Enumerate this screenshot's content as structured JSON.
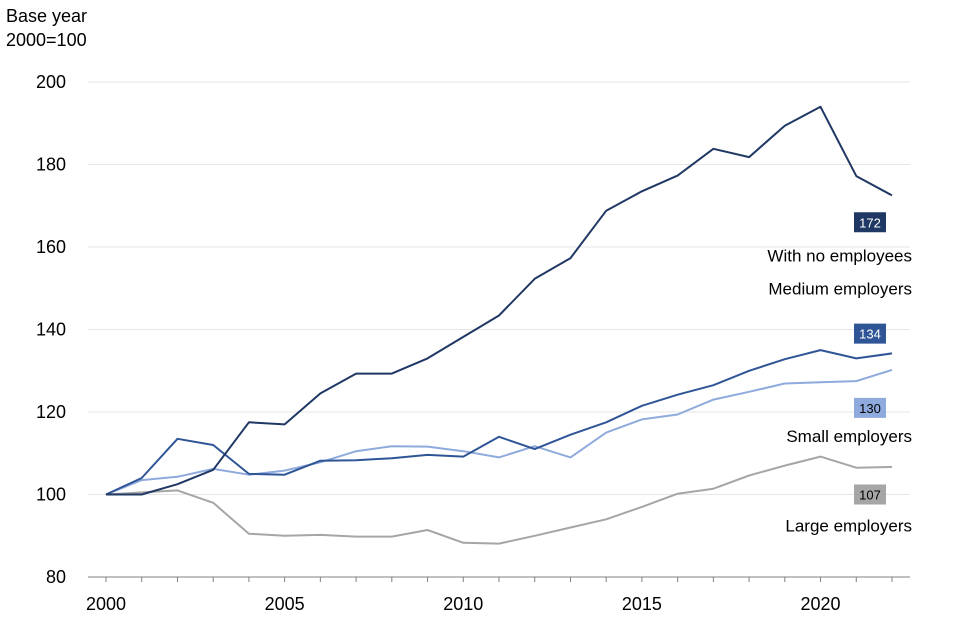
{
  "chart_data": {
    "type": "line",
    "ylabel_line1": "Base year",
    "ylabel_line2": "2000=100",
    "ylim": [
      80,
      200
    ],
    "yticks": [
      80,
      100,
      120,
      140,
      160,
      180,
      200
    ],
    "xlim": [
      2000,
      2022
    ],
    "xticks": [
      2000,
      2005,
      2010,
      2015,
      2020
    ],
    "grid": true,
    "x": [
      2000,
      2001,
      2002,
      2003,
      2004,
      2005,
      2006,
      2007,
      2008,
      2009,
      2010,
      2011,
      2012,
      2013,
      2014,
      2015,
      2016,
      2017,
      2018,
      2019,
      2020,
      2021,
      2022
    ],
    "series": [
      {
        "name": "Large employers",
        "color": "#a6a6a6",
        "end_label": "107",
        "values": [
          100,
          100.5,
          101,
          98,
          90.5,
          90,
          90.2,
          89.8,
          89.8,
          91.4,
          88.3,
          88.1,
          90,
          92,
          94,
          97,
          100.2,
          101.4,
          104.6,
          107,
          109.2,
          106.5,
          106.7
        ]
      },
      {
        "name": "Small employers",
        "color": "#8faadc",
        "end_label": "130",
        "values": [
          100,
          103.5,
          104.3,
          106.2,
          104.8,
          105.8,
          107.8,
          110.5,
          111.7,
          111.6,
          110.5,
          109,
          111.7,
          109,
          115,
          118.2,
          119.4,
          123,
          124.9,
          126.9,
          127.2,
          127.5,
          130.2
        ]
      },
      {
        "name": "Medium employers",
        "color": "#2f5597",
        "end_label": "134",
        "values": [
          100,
          104,
          113.5,
          112,
          105,
          104.8,
          108.2,
          108.3,
          108.8,
          109.6,
          109.2,
          114,
          111,
          114.5,
          117.5,
          121.5,
          124.2,
          126.5,
          130,
          132.8,
          135,
          133,
          134.2
        ]
      },
      {
        "name": "With no employees",
        "color": "#203864",
        "end_label": "172",
        "values": [
          100,
          100,
          102.5,
          106,
          117.5,
          117,
          124.5,
          129.3,
          129.3,
          133,
          138.2,
          143.4,
          152.3,
          157.3,
          168.8,
          173.5,
          177.3,
          183.8,
          181.8,
          189.4,
          194,
          177.2,
          172.5
        ]
      }
    ]
  }
}
